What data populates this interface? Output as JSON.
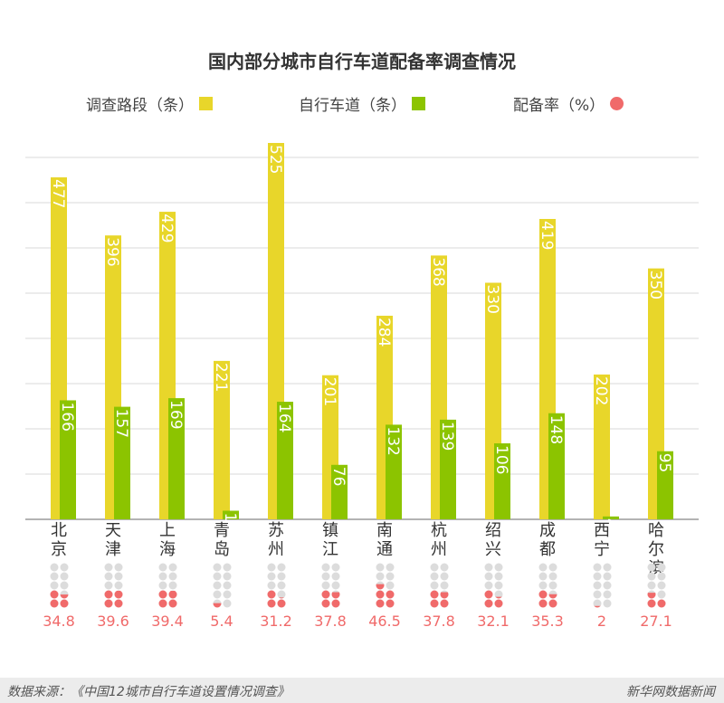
{
  "title": "国内部分城市自行车道配备率调查情况",
  "legend": {
    "survey": "调查路段（条）",
    "bike": "自行车道（条）",
    "rate": "配备率（%）"
  },
  "colors": {
    "survey": "#e8d62a",
    "bike": "#8cc400",
    "rate": "#f06a6a",
    "dot_empty": "#dcdcdc",
    "grid": "#d8d8d8"
  },
  "chart_data": {
    "type": "bar",
    "title": "国内部分城市自行车道配备率调查情况",
    "categories": [
      "北京",
      "天津",
      "上海",
      "青岛",
      "苏州",
      "镇江",
      "南通",
      "杭州",
      "绍兴",
      "成都",
      "西宁",
      "哈尔滨"
    ],
    "series": [
      {
        "name": "调查路段（条）",
        "values": [
          477,
          396,
          429,
          221,
          525,
          201,
          284,
          368,
          330,
          419,
          202,
          350
        ]
      },
      {
        "name": "自行车道（条）",
        "values": [
          166,
          157,
          169,
          12,
          164,
          76,
          132,
          139,
          106,
          148,
          4,
          95
        ]
      },
      {
        "name": "配备率（%）",
        "values": [
          34.8,
          39.6,
          39.4,
          5.4,
          31.2,
          37.8,
          46.5,
          37.8,
          32.1,
          35.3,
          2,
          27.1
        ]
      }
    ],
    "rate_labels": [
      "34.8",
      "39.6",
      "39.4",
      "5.4",
      "31.2",
      "37.8",
      "46.5",
      "37.8",
      "32.1",
      "35.3",
      "2",
      "27.1"
    ],
    "ylim": [
      0,
      525
    ],
    "grid": true,
    "legend_position": "top"
  },
  "footer": {
    "source": "数据来源：《中国12城市自行车道设置情况调查》",
    "brand": "新华网数据新闻"
  }
}
